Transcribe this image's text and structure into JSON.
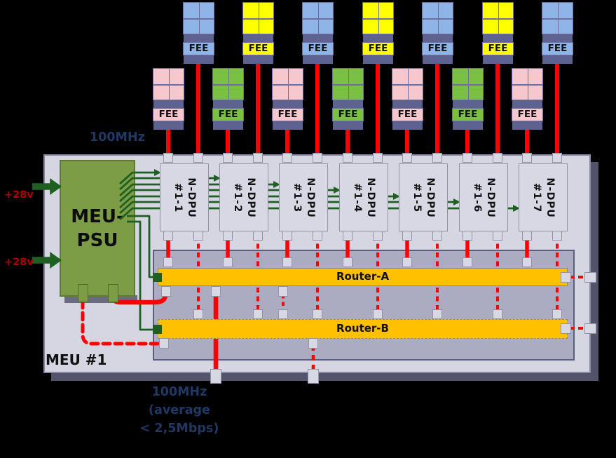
{
  "diagram": {
    "clock_label": "100MHz",
    "meu_label": "MEU #1",
    "psu": {
      "line1": "MEU-",
      "line2": "PSU"
    },
    "power_inputs": [
      {
        "label": "+28v"
      },
      {
        "label": "+28v"
      }
    ],
    "output_note": [
      "100MHz",
      "(average",
      "< 2,5Mbps)"
    ],
    "dpus": [
      {
        "name": "N-DPU",
        "id": "#1-1"
      },
      {
        "name": "N-DPU",
        "id": "#1-2"
      },
      {
        "name": "N-DPU",
        "id": "#1-3"
      },
      {
        "name": "N-DPU",
        "id": "#1-4"
      },
      {
        "name": "N-DPU",
        "id": "#1-5"
      },
      {
        "name": "N-DPU",
        "id": "#1-6"
      },
      {
        "name": "N-DPU",
        "id": "#1-7"
      }
    ],
    "fee_upper": [
      {
        "label": "FEE",
        "color": "blue"
      },
      {
        "label": "FEE",
        "color": "yellow"
      },
      {
        "label": "FEE",
        "color": "blue"
      },
      {
        "label": "FEE",
        "color": "yellow"
      },
      {
        "label": "FEE",
        "color": "blue"
      },
      {
        "label": "FEE",
        "color": "yellow"
      },
      {
        "label": "FEE",
        "color": "blue"
      }
    ],
    "fee_lower": [
      {
        "label": "FEE",
        "color": "pink"
      },
      {
        "label": "FEE",
        "color": "green"
      },
      {
        "label": "FEE",
        "color": "pink"
      },
      {
        "label": "FEE",
        "color": "green"
      },
      {
        "label": "FEE",
        "color": "pink"
      },
      {
        "label": "FEE",
        "color": "green"
      },
      {
        "label": "FEE",
        "color": "pink"
      }
    ],
    "routers": [
      {
        "label": "Router-A",
        "border": "solid"
      },
      {
        "label": "Router-B",
        "border": "dashed"
      }
    ],
    "colors": {
      "wire_red": "#FF0000",
      "wire_green": "#1D6022",
      "navy_text": "#1F3864",
      "power_text": "#B00000",
      "router_orange": "#FFC000",
      "psu_green": "#7C9D45",
      "fee_blue": "#8EB4E8",
      "fee_yellow": "#FFFF00",
      "fee_pink": "#F6C7CD",
      "fee_green": "#7AC143",
      "band_purple": "#5D6290",
      "enclosure_fill": "#D6D6E3",
      "backplane_fill": "#ABABC1"
    }
  }
}
